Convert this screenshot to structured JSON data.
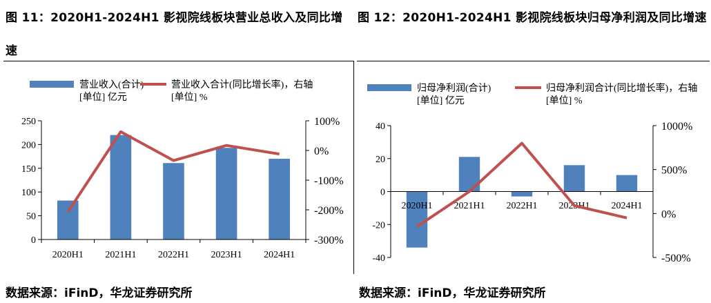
{
  "figures": [
    {
      "title": "图 11：2020H1-2024H1 影视院线板块营业总收入及同比增速",
      "source": "数据来源：iFinD，华龙证券研究所",
      "chart_data": {
        "type": "bar",
        "categories": [
          "2020H1",
          "2021H1",
          "2022H1",
          "2023H1",
          "2024H1"
        ],
        "series": [
          {
            "name": "营业收入(合计)\n[单位] 亿元",
            "type": "bar",
            "axis": "left",
            "values": [
              82,
              220,
              161,
              193,
              170
            ]
          },
          {
            "name": "营业收入合计(同比增长率)，右轴\n[单位] %",
            "type": "line",
            "axis": "right",
            "values": [
              -207,
              63,
              -34,
              17,
              -12
            ]
          }
        ],
        "y_left": {
          "min": 0,
          "max": 250,
          "ticks": [
            "0",
            "50",
            "100",
            "150",
            "200",
            "250"
          ]
        },
        "y_right": {
          "min": -300,
          "max": 100,
          "ticks": [
            "-300%",
            "-200%",
            "-100%",
            "0%",
            "100%"
          ]
        },
        "colors": {
          "bar": "#4f81bd",
          "line": "#c0504d"
        },
        "legend": "top"
      }
    },
    {
      "title": "图 12：2020H1-2024H1 影视院线板块归母净利润及同比增速",
      "source": "数据来源：iFinD，华龙证券研究所",
      "chart_data": {
        "type": "bar",
        "categories": [
          "2020H1",
          "2021H1",
          "2022H1",
          "2023H1",
          "2024H1"
        ],
        "series": [
          {
            "name": "归母净利润(合计)\n[单位] 亿元",
            "type": "bar",
            "axis": "left",
            "values": [
              -34,
              21,
              -3,
              16,
              10
            ]
          },
          {
            "name": "归母净利润合计(同比增长率)，右轴\n[单位] %",
            "type": "line",
            "axis": "right",
            "values": [
              -150,
              250,
              800,
              90,
              -50
            ]
          }
        ],
        "y_left": {
          "min": -40,
          "max": 40,
          "ticks": [
            "-40",
            "-20",
            "0",
            "20",
            "40"
          ]
        },
        "y_right": {
          "min": -500,
          "max": 1000,
          "ticks": [
            "-500%",
            "0%",
            "500%",
            "1000%"
          ]
        },
        "colors": {
          "bar": "#4f81bd",
          "line": "#c0504d"
        },
        "legend": "top"
      }
    }
  ]
}
